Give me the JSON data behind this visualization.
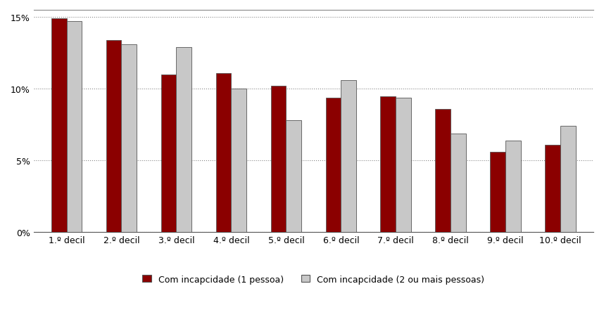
{
  "categories": [
    "1.º decil",
    "2.º decil",
    "3.º decil",
    "4.º decil",
    "5.º decil",
    "6.º decil",
    "7.º decil",
    "8.º decil",
    "9.º decil",
    "10.º decil"
  ],
  "series1_label": "Com incapcidade (1 pessoa)",
  "series2_label": "Com incapcidade (2 ou mais pessoas)",
  "series1_values": [
    0.149,
    0.134,
    0.11,
    0.111,
    0.102,
    0.094,
    0.095,
    0.086,
    0.056,
    0.061
  ],
  "series2_values": [
    0.147,
    0.131,
    0.129,
    0.1,
    0.078,
    0.106,
    0.094,
    0.069,
    0.064,
    0.074
  ],
  "series1_color": "#8B0000",
  "series2_color": "#C8C8C8",
  "bar_edge_color": "#555555",
  "ylim": [
    0,
    0.155
  ],
  "yticks": [
    0.0,
    0.05,
    0.1,
    0.15
  ],
  "ytick_labels": [
    "0%",
    "5%",
    "10%",
    "15%"
  ],
  "grid_color": "#888888",
  "background_color": "#FFFFFF",
  "bar_width": 0.28,
  "legend_fontsize": 9,
  "tick_fontsize": 9
}
